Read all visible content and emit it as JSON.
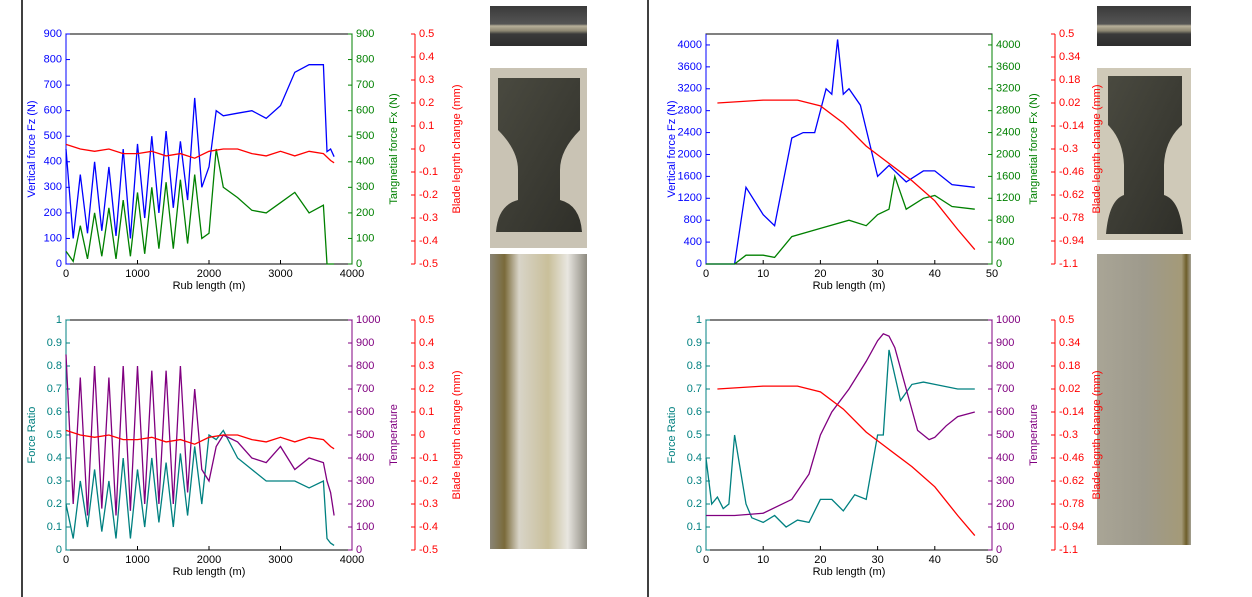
{
  "chart_data": [
    {
      "type": "line",
      "xlabel": "Rub length (m)",
      "ylabel": "Vertical force Fz (N)",
      "y2label": "Tangnetial force Fx (N)",
      "y3label": "Blade legnth change (mm)",
      "xlim": [
        0,
        4000
      ],
      "xticks": [
        0,
        1000,
        2000,
        3000,
        4000
      ],
      "ylim": [
        0,
        900
      ],
      "yticks": [
        0,
        100,
        200,
        300,
        400,
        500,
        600,
        700,
        800,
        900
      ],
      "y2lim": [
        0,
        900
      ],
      "y2ticks": [
        0,
        100,
        200,
        300,
        400,
        500,
        600,
        700,
        800,
        900
      ],
      "y3lim": [
        -0.5,
        0.5
      ],
      "y3ticks": [
        -0.5,
        -0.4,
        -0.3,
        -0.2,
        -0.1,
        0,
        0.1,
        0.2,
        0.3,
        0.4,
        0.5
      ],
      "series": [
        {
          "color": "#0000ff",
          "axis": "y",
          "x": [
            0,
            100,
            200,
            300,
            400,
            500,
            600,
            700,
            800,
            900,
            1000,
            1100,
            1200,
            1300,
            1400,
            1500,
            1600,
            1700,
            1800,
            1900,
            2000,
            2100,
            2200,
            2400,
            2600,
            2800,
            3000,
            3200,
            3400,
            3600,
            3650,
            3700,
            3750
          ],
          "values": [
            450,
            100,
            350,
            120,
            400,
            130,
            380,
            110,
            450,
            100,
            470,
            180,
            500,
            200,
            520,
            220,
            480,
            250,
            650,
            300,
            380,
            600,
            580,
            590,
            600,
            570,
            620,
            750,
            780,
            780,
            440,
            450,
            420
          ]
        },
        {
          "color": "#008000",
          "axis": "y2",
          "x": [
            0,
            100,
            200,
            300,
            400,
            500,
            600,
            700,
            800,
            900,
            1000,
            1100,
            1200,
            1300,
            1400,
            1500,
            1600,
            1700,
            1800,
            1900,
            2000,
            2100,
            2200,
            2400,
            2600,
            2800,
            3000,
            3200,
            3400,
            3600,
            3650,
            3700,
            3750
          ],
          "values": [
            50,
            10,
            150,
            20,
            200,
            30,
            220,
            20,
            250,
            30,
            280,
            40,
            300,
            60,
            320,
            60,
            330,
            80,
            350,
            100,
            120,
            450,
            300,
            260,
            210,
            200,
            240,
            280,
            200,
            230,
            0,
            0,
            0
          ]
        },
        {
          "color": "#ff0000",
          "axis": "y3",
          "x": [
            0,
            200,
            400,
            600,
            800,
            1000,
            1200,
            1400,
            1600,
            1800,
            2000,
            2200,
            2400,
            2600,
            2800,
            3000,
            3200,
            3400,
            3600,
            3700,
            3750
          ],
          "values": [
            0.02,
            0,
            -0.01,
            0,
            -0.02,
            -0.02,
            -0.01,
            -0.03,
            -0.02,
            -0.04,
            -0.01,
            0,
            0,
            -0.02,
            -0.03,
            -0.01,
            -0.03,
            -0.01,
            -0.02,
            -0.05,
            -0.06
          ]
        }
      ]
    },
    {
      "type": "line",
      "xlabel": "Rub length (m)",
      "ylabel": "Force Ratio",
      "y2label": "Temperature",
      "y3label": "Blade legnth change (mm)",
      "xlim": [
        0,
        4000
      ],
      "xticks": [
        0,
        1000,
        2000,
        3000,
        4000
      ],
      "ylim": [
        0,
        1
      ],
      "yticks": [
        0,
        0.1,
        0.2,
        0.3,
        0.4,
        0.5,
        0.6,
        0.7,
        0.8,
        0.9,
        1
      ],
      "y2lim": [
        0,
        1000
      ],
      "y2ticks": [
        0,
        100,
        200,
        300,
        400,
        500,
        600,
        700,
        800,
        900,
        1000
      ],
      "y3lim": [
        -0.5,
        0.5
      ],
      "y3ticks": [
        -0.5,
        -0.4,
        -0.3,
        -0.2,
        -0.1,
        0,
        0.1,
        0.2,
        0.3,
        0.4,
        0.5
      ],
      "series": [
        {
          "color": "#008080",
          "axis": "y",
          "x": [
            0,
            100,
            200,
            300,
            400,
            500,
            600,
            700,
            800,
            900,
            1000,
            1100,
            1200,
            1300,
            1400,
            1500,
            1600,
            1700,
            1800,
            1900,
            2000,
            2100,
            2200,
            2400,
            2600,
            2800,
            3000,
            3200,
            3400,
            3600,
            3650,
            3700,
            3750
          ],
          "values": [
            0.2,
            0.05,
            0.3,
            0.1,
            0.35,
            0.08,
            0.3,
            0.05,
            0.4,
            0.05,
            0.35,
            0.1,
            0.4,
            0.12,
            0.38,
            0.1,
            0.42,
            0.15,
            0.45,
            0.2,
            0.5,
            0.48,
            0.52,
            0.4,
            0.35,
            0.3,
            0.3,
            0.3,
            0.27,
            0.3,
            0.05,
            0.03,
            0.02
          ]
        },
        {
          "color": "#800080",
          "axis": "y2",
          "x": [
            0,
            100,
            200,
            300,
            400,
            500,
            600,
            700,
            800,
            900,
            1000,
            1100,
            1200,
            1300,
            1400,
            1500,
            1600,
            1700,
            1800,
            1900,
            2000,
            2100,
            2200,
            2400,
            2600,
            2800,
            3000,
            3200,
            3400,
            3600,
            3650,
            3700,
            3750
          ],
          "values": [
            850,
            200,
            750,
            150,
            800,
            180,
            750,
            150,
            800,
            170,
            800,
            200,
            780,
            200,
            780,
            200,
            800,
            250,
            700,
            350,
            300,
            450,
            500,
            470,
            400,
            380,
            450,
            350,
            400,
            380,
            300,
            250,
            150
          ]
        },
        {
          "color": "#ff0000",
          "axis": "y3",
          "x": [
            0,
            200,
            400,
            600,
            800,
            1000,
            1200,
            1400,
            1600,
            1800,
            2000,
            2200,
            2400,
            2600,
            2800,
            3000,
            3200,
            3400,
            3600,
            3700,
            3750
          ],
          "values": [
            0.02,
            0,
            -0.01,
            0,
            -0.02,
            -0.02,
            -0.01,
            -0.03,
            -0.02,
            -0.04,
            -0.01,
            0,
            0,
            -0.02,
            -0.03,
            -0.01,
            -0.03,
            -0.01,
            -0.02,
            -0.05,
            -0.06
          ]
        }
      ]
    },
    {
      "type": "line",
      "xlabel": "Rub length (m)",
      "ylabel": "Vertical force Fz (N)",
      "y2label": "Tangnetial force Fx (N)",
      "y3label": "Blade legnth change (mm)",
      "xlim": [
        0,
        50
      ],
      "xticks": [
        0,
        10,
        20,
        30,
        40,
        50
      ],
      "ylim": [
        0,
        4200
      ],
      "yticks": [
        0,
        400,
        800,
        1200,
        1600,
        2000,
        2400,
        2800,
        3200,
        3600,
        4000
      ],
      "y2lim": [
        0,
        4200
      ],
      "y2ticks": [
        0,
        400,
        800,
        1200,
        1600,
        2000,
        2400,
        2800,
        3200,
        3600,
        4000
      ],
      "y3lim": [
        -1.1,
        0.5
      ],
      "y3ticks": [
        -1.1,
        -0.94,
        -0.78,
        -0.62,
        -0.46,
        -0.3,
        -0.14,
        0.02,
        0.18,
        0.34,
        0.5
      ],
      "series": [
        {
          "color": "#0000ff",
          "axis": "y",
          "x": [
            0,
            5,
            7,
            10,
            12,
            15,
            17,
            19,
            21,
            22,
            23,
            24,
            25,
            27,
            30,
            32,
            35,
            38,
            40,
            43,
            47
          ],
          "values": [
            0,
            0,
            1400,
            900,
            700,
            2300,
            2400,
            2400,
            3200,
            3100,
            4100,
            3100,
            3200,
            2900,
            1600,
            1800,
            1500,
            1700,
            1700,
            1450,
            1400
          ]
        },
        {
          "color": "#008000",
          "axis": "y2",
          "x": [
            0,
            5,
            7,
            10,
            12,
            15,
            20,
            25,
            28,
            30,
            32,
            33,
            35,
            38,
            40,
            43,
            47
          ],
          "values": [
            0,
            0,
            160,
            160,
            120,
            500,
            650,
            800,
            700,
            900,
            1000,
            1600,
            1000,
            1200,
            1250,
            1050,
            1000
          ]
        },
        {
          "color": "#ff0000",
          "axis": "y3",
          "x": [
            2,
            10,
            16,
            20,
            24,
            28,
            32,
            36,
            40,
            44,
            47
          ],
          "values": [
            0.02,
            0.04,
            0.04,
            0,
            -0.12,
            -0.28,
            -0.4,
            -0.52,
            -0.66,
            -0.86,
            -1
          ]
        }
      ]
    },
    {
      "type": "line",
      "xlabel": "Rub length (m)",
      "ylabel": "Force Ratio",
      "y2label": "Temperature",
      "y3label": "Blade legnth change (mm)",
      "xlim": [
        0,
        50
      ],
      "xticks": [
        0,
        10,
        20,
        30,
        40,
        50
      ],
      "ylim": [
        0,
        1
      ],
      "yticks": [
        0,
        0.1,
        0.2,
        0.3,
        0.4,
        0.5,
        0.6,
        0.7,
        0.8,
        0.9,
        1
      ],
      "y2lim": [
        0,
        1000
      ],
      "y2ticks": [
        0,
        100,
        200,
        300,
        400,
        500,
        600,
        700,
        800,
        900,
        1000
      ],
      "y3lim": [
        -1.1,
        0.5
      ],
      "y3ticks": [
        -1.1,
        -0.94,
        -0.78,
        -0.62,
        -0.46,
        -0.3,
        -0.14,
        0.02,
        0.18,
        0.34,
        0.5
      ],
      "series": [
        {
          "color": "#008080",
          "axis": "y",
          "x": [
            0,
            1,
            2,
            3,
            4,
            5,
            7,
            8,
            10,
            12,
            14,
            16,
            18,
            20,
            22,
            24,
            26,
            28,
            30,
            31,
            32,
            34,
            36,
            38,
            40,
            44,
            47
          ],
          "values": [
            0.4,
            0.2,
            0.23,
            0.18,
            0.2,
            0.5,
            0.2,
            0.14,
            0.12,
            0.15,
            0.1,
            0.13,
            0.12,
            0.22,
            0.22,
            0.17,
            0.24,
            0.22,
            0.5,
            0.5,
            0.87,
            0.65,
            0.72,
            0.73,
            0.72,
            0.7,
            0.7
          ]
        },
        {
          "color": "#800080",
          "axis": "y2",
          "x": [
            0,
            5,
            10,
            15,
            18,
            20,
            22,
            25,
            28,
            30,
            31,
            32,
            33,
            35,
            37,
            39,
            40,
            42,
            44,
            47
          ],
          "values": [
            150,
            150,
            160,
            220,
            330,
            500,
            600,
            700,
            820,
            910,
            940,
            930,
            880,
            700,
            520,
            480,
            490,
            540,
            580,
            600
          ]
        },
        {
          "color": "#ff0000",
          "axis": "y3",
          "x": [
            2,
            10,
            16,
            20,
            24,
            28,
            32,
            36,
            40,
            44,
            47
          ],
          "values": [
            0.02,
            0.04,
            0.04,
            0,
            -0.12,
            -0.28,
            -0.4,
            -0.52,
            -0.66,
            -0.86,
            -1
          ]
        }
      ]
    }
  ]
}
